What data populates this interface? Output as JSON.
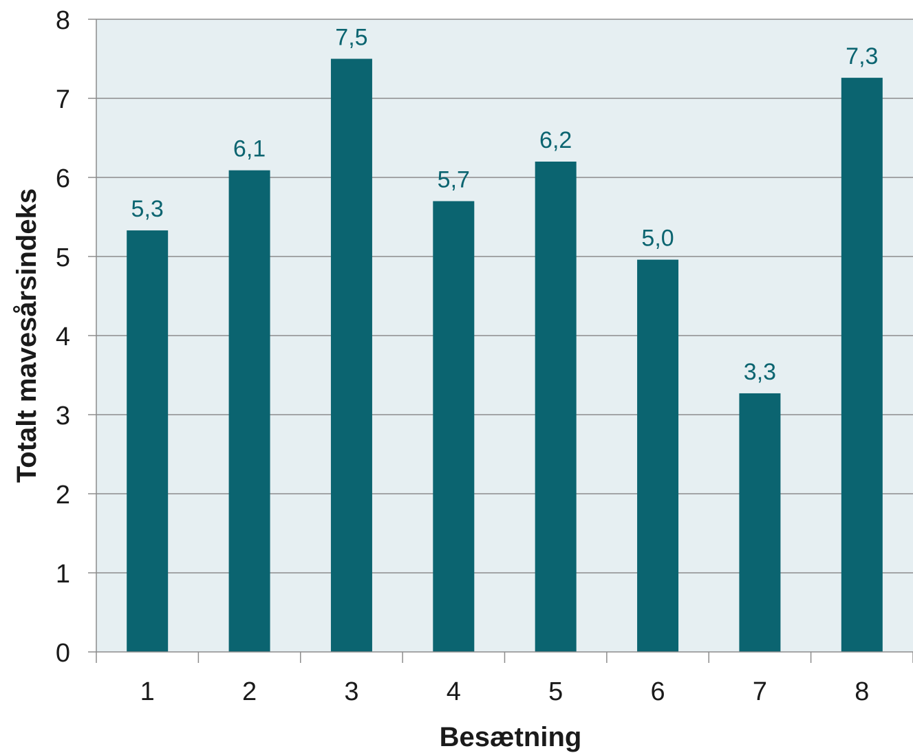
{
  "chart_data": {
    "type": "bar",
    "title": "",
    "xlabel": "Besætning",
    "ylabel": "Totalt mavesårsindeks",
    "categories": [
      "1",
      "2",
      "3",
      "4",
      "5",
      "6",
      "7",
      "8"
    ],
    "values": [
      5.33,
      6.09,
      7.5,
      5.7,
      6.2,
      4.96,
      3.27,
      7.26
    ],
    "data_labels": [
      "5,3",
      "6,1",
      "7,5",
      "5,7",
      "6,2",
      "5,0",
      "3,3",
      "7,3"
    ],
    "ylim": [
      0,
      8
    ],
    "yticks": [
      "0",
      "1",
      "2",
      "3",
      "4",
      "5",
      "6",
      "7",
      "8"
    ],
    "grid": true,
    "legend": "none",
    "colors": {
      "bar": "#0b6470",
      "plot_background": "#e6eff2",
      "grid": "#8c8c8c",
      "data_label": "#0b6470"
    }
  }
}
